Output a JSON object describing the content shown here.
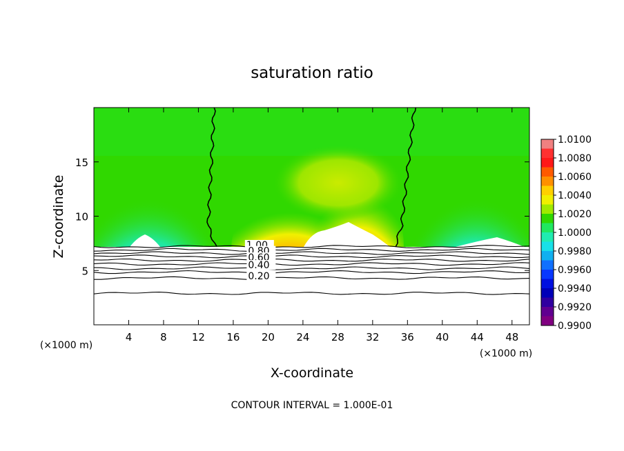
{
  "chart_data": {
    "type": "heatmap",
    "title": "saturation ratio",
    "xlabel": "X-coordinate",
    "ylabel": "Z-coordinate",
    "x_unit_left": "(×1000 m)",
    "x_unit_right": "(×1000 m)",
    "xlim": [
      0,
      50
    ],
    "ylim": [
      0,
      20
    ],
    "x_ticks": [
      4,
      8,
      12,
      16,
      20,
      24,
      28,
      32,
      36,
      40,
      44,
      48
    ],
    "y_ticks": [
      5,
      10,
      15
    ],
    "colorbar": {
      "range": [
        0.99,
        1.01
      ],
      "labels": [
        "1.0100",
        "1.0080",
        "1.0060",
        "1.0040",
        "1.0020",
        "1.0000",
        "0.9980",
        "0.9960",
        "0.9940",
        "0.9920",
        "0.9900"
      ],
      "colors": [
        "#f08080",
        "#ff3030",
        "#ff1818",
        "#ff5a00",
        "#ff9000",
        "#ffd000",
        "#f0f000",
        "#a0ea00",
        "#30d800",
        "#20e860",
        "#20ecb0",
        "#18e0e8",
        "#10b0f0",
        "#1070ff",
        "#0838ff",
        "#0010e0",
        "#0000b8",
        "#3000a0",
        "#600090",
        "#800080"
      ]
    },
    "cloud_boundary_x_km": [
      13.8,
      36.8
    ],
    "cloud_base_km": 7.2,
    "contours": {
      "levels": [
        1.0,
        0.9,
        0.8,
        0.7,
        0.6,
        0.5,
        0.4,
        0.3,
        0.2,
        0.1
      ],
      "heights_km": [
        7.2,
        6.9,
        6.6,
        6.3,
        5.95,
        5.6,
        5.2,
        4.85,
        4.3,
        2.9
      ],
      "labels": [
        {
          "text": "1.00",
          "x": 17.5,
          "y": 7.05
        },
        {
          "text": "0.80",
          "x": 17.7,
          "y": 6.5
        },
        {
          "text": "0.60",
          "x": 17.7,
          "y": 5.9
        },
        {
          "text": "0.40",
          "x": 17.7,
          "y": 5.2
        },
        {
          "text": "0.20",
          "x": 17.7,
          "y": 4.2
        }
      ]
    },
    "footnote": "CONTOUR INTERVAL = 1.000E-01"
  }
}
